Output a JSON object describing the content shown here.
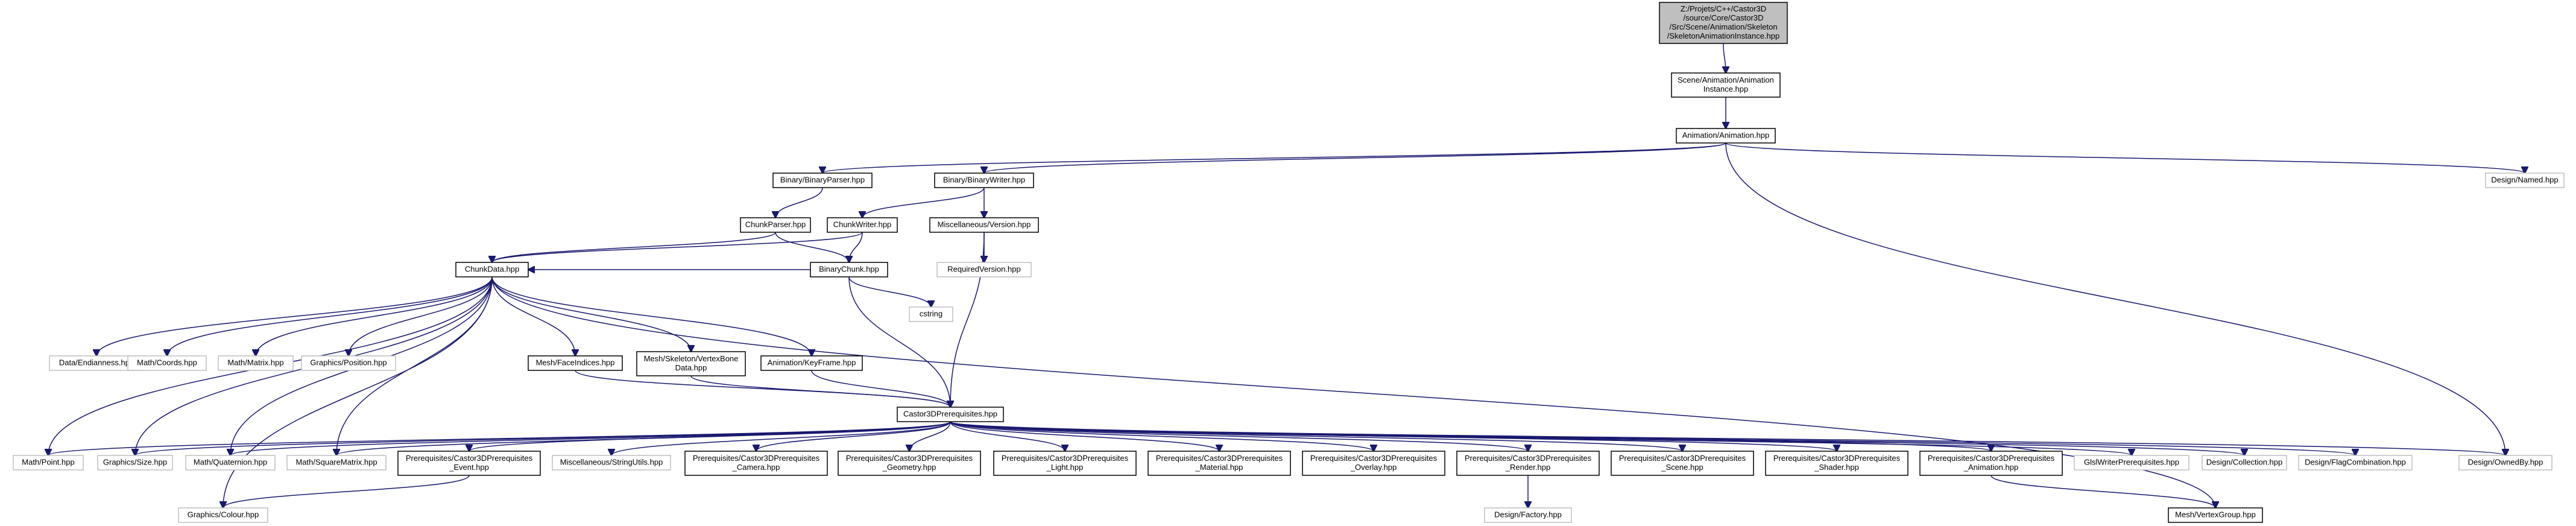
{
  "graph": {
    "nodes": {
      "root": {
        "lines": [
          "Z:/Projets/C++/Castor3D",
          "/source/Core/Castor3D",
          "/Src/Scene/Animation/Skeleton",
          "/SkeletonAnimationInstance.hpp"
        ]
      },
      "animinst": {
        "lines": [
          "Scene/Animation/Animation",
          "Instance.hpp"
        ]
      },
      "animation": {
        "lines": [
          "Animation/Animation.hpp"
        ]
      },
      "bparser": {
        "lines": [
          "Binary/BinaryParser.hpp"
        ]
      },
      "bwriter": {
        "lines": [
          "Binary/BinaryWriter.hpp"
        ]
      },
      "named": {
        "lines": [
          "Design/Named.hpp"
        ]
      },
      "chparser": {
        "lines": [
          "ChunkParser.hpp"
        ]
      },
      "chwriter": {
        "lines": [
          "ChunkWriter.hpp"
        ]
      },
      "version": {
        "lines": [
          "Miscellaneous/Version.hpp"
        ]
      },
      "reqversion": {
        "lines": [
          "RequiredVersion.hpp"
        ]
      },
      "bchunk": {
        "lines": [
          "BinaryChunk.hpp"
        ]
      },
      "cstring": {
        "lines": [
          "cstring"
        ]
      },
      "chdata": {
        "lines": [
          "ChunkData.hpp"
        ]
      },
      "endian": {
        "lines": [
          "Data/Endianness.hpp"
        ]
      },
      "coords": {
        "lines": [
          "Math/Coords.hpp"
        ]
      },
      "matrix": {
        "lines": [
          "Math/Matrix.hpp"
        ]
      },
      "position": {
        "lines": [
          "Graphics/Position.hpp"
        ]
      },
      "faceind": {
        "lines": [
          "Mesh/FaceIndices.hpp"
        ]
      },
      "vbdata": {
        "lines": [
          "Mesh/Skeleton/VertexBone",
          "Data.hpp"
        ]
      },
      "keyframe": {
        "lines": [
          "Animation/KeyFrame.hpp"
        ]
      },
      "prereq": {
        "lines": [
          "Castor3DPrerequisites.hpp"
        ]
      },
      "point": {
        "lines": [
          "Math/Point.hpp"
        ]
      },
      "size": {
        "lines": [
          "Graphics/Size.hpp"
        ]
      },
      "quat": {
        "lines": [
          "Math/Quaternion.hpp"
        ]
      },
      "sqmat": {
        "lines": [
          "Math/SquareMatrix.hpp"
        ]
      },
      "pevent": {
        "lines": [
          "Prerequisites/Castor3DPrerequisites",
          "_Event.hpp"
        ]
      },
      "strutils": {
        "lines": [
          "Miscellaneous/StringUtils.hpp"
        ]
      },
      "pcamera": {
        "lines": [
          "Prerequisites/Castor3DPrerequisites",
          "_Camera.hpp"
        ]
      },
      "pgeom": {
        "lines": [
          "Prerequisites/Castor3DPrerequisites",
          "_Geometry.hpp"
        ]
      },
      "plight": {
        "lines": [
          "Prerequisites/Castor3DPrerequisites",
          "_Light.hpp"
        ]
      },
      "pmaterial": {
        "lines": [
          "Prerequisites/Castor3DPrerequisites",
          "_Material.hpp"
        ]
      },
      "poverlay": {
        "lines": [
          "Prerequisites/Castor3DPrerequisites",
          "_Overlay.hpp"
        ]
      },
      "prender": {
        "lines": [
          "Prerequisites/Castor3DPrerequisites",
          "_Render.hpp"
        ]
      },
      "pscene": {
        "lines": [
          "Prerequisites/Castor3DPrerequisites",
          "_Scene.hpp"
        ]
      },
      "pshader": {
        "lines": [
          "Prerequisites/Castor3DPrerequisites",
          "_Shader.hpp"
        ]
      },
      "panim": {
        "lines": [
          "Prerequisites/Castor3DPrerequisites",
          "_Animation.hpp"
        ]
      },
      "glsl": {
        "lines": [
          "GlslWriterPrerequisites.hpp"
        ]
      },
      "collection": {
        "lines": [
          "Design/Collection.hpp"
        ]
      },
      "flagcomb": {
        "lines": [
          "Design/FlagCombination.hpp"
        ]
      },
      "ownedby": {
        "lines": [
          "Design/OwnedBy.hpp"
        ]
      },
      "colour": {
        "lines": [
          "Graphics/Colour.hpp"
        ]
      },
      "factory": {
        "lines": [
          "Design/Factory.hpp"
        ]
      },
      "vgroup": {
        "lines": [
          "Mesh/VertexGroup.hpp"
        ]
      }
    }
  }
}
